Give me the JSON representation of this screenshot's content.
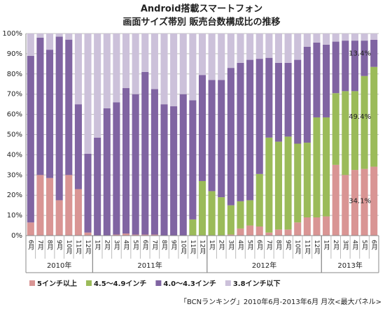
{
  "chart_data": {
    "type": "stacked_bar",
    "title": "Android搭載スマートフォン",
    "subtitle": "画面サイズ帯別 販売台数構成比の推移",
    "source": "「BCNランキング」2010年6月-2013年6月 月次<最大パネル>",
    "categories": [
      "6月",
      "7月",
      "8月",
      "9月",
      "10月",
      "11月",
      "12月",
      "1月",
      "2月",
      "3月",
      "4月",
      "5月",
      "6月",
      "7月",
      "8月",
      "9月",
      "10月",
      "11月",
      "12月",
      "1月",
      "2月",
      "3月",
      "4月",
      "5月",
      "6月",
      "7月",
      "8月",
      "9月",
      "10月",
      "11月",
      "12月",
      "1月",
      "2月",
      "3月",
      "4月",
      "5月",
      "6月"
    ],
    "year_groups": [
      {
        "label": "2010年",
        "months": 7
      },
      {
        "label": "2011年",
        "months": 12
      },
      {
        "label": "2012年",
        "months": 12
      },
      {
        "label": "2013年",
        "months": 6
      }
    ],
    "series": [
      {
        "name": "5インチ以上",
        "color": "#d99594",
        "values": [
          6.5,
          30,
          28.5,
          17.5,
          30,
          23,
          1.5,
          0,
          0,
          0.5,
          1,
          0.5,
          0.5,
          0.5,
          0,
          0,
          0,
          0,
          0,
          0,
          0,
          0.5,
          3.5,
          5,
          4.5,
          1.5,
          3,
          3,
          6.5,
          9,
          9,
          9.5,
          35,
          30,
          32.5,
          33,
          34.1
        ],
        "value_labels": [
          null,
          null,
          null,
          null,
          null,
          null,
          null,
          null,
          null,
          null,
          null,
          null,
          null,
          null,
          null,
          null,
          null,
          null,
          null,
          null,
          null,
          null,
          null,
          null,
          null,
          null,
          null,
          null,
          null,
          null,
          null,
          null,
          null,
          null,
          null,
          null,
          "34.1%"
        ]
      },
      {
        "name": "4.5～4.9インチ",
        "color": "#9bbb59",
        "values": [
          0,
          0,
          0,
          0,
          0,
          0,
          0,
          0,
          0,
          0,
          0,
          0,
          0,
          0,
          0,
          0,
          0,
          8,
          27,
          22,
          19,
          14.5,
          13.5,
          12.5,
          26,
          47,
          43.5,
          46,
          39,
          37,
          49.5,
          49,
          35.5,
          41.5,
          39,
          46,
          49.4
        ],
        "value_labels": [
          null,
          null,
          null,
          null,
          null,
          null,
          null,
          null,
          null,
          null,
          null,
          null,
          null,
          null,
          null,
          null,
          null,
          null,
          null,
          null,
          null,
          null,
          null,
          null,
          null,
          null,
          null,
          null,
          null,
          null,
          null,
          null,
          null,
          null,
          null,
          null,
          "49.4%"
        ]
      },
      {
        "name": "4.0～4.3インチ",
        "color": "#8064a2",
        "values": [
          82.5,
          68,
          63.5,
          81,
          67,
          42,
          39,
          48.5,
          63,
          65.5,
          72,
          69.5,
          80.5,
          72,
          65,
          64,
          70,
          59,
          52.5,
          55,
          58,
          68,
          68.5,
          69.5,
          57,
          39.5,
          39,
          36.5,
          41.5,
          47.5,
          37,
          36,
          25.5,
          25,
          25,
          17.5,
          13.4
        ],
        "value_labels": [
          null,
          null,
          null,
          null,
          null,
          null,
          null,
          null,
          null,
          null,
          null,
          null,
          null,
          null,
          null,
          null,
          null,
          null,
          null,
          null,
          null,
          null,
          null,
          null,
          null,
          null,
          null,
          null,
          null,
          null,
          null,
          null,
          null,
          null,
          null,
          null,
          "13.4%"
        ]
      },
      {
        "name": "3.8インチ以下",
        "color": "#ccc1da",
        "values": [
          11,
          2,
          8,
          1.5,
          3,
          35,
          59.5,
          51.5,
          37,
          34,
          27,
          30,
          19,
          27.5,
          35,
          36,
          30,
          33,
          20.5,
          23,
          23,
          17,
          14.5,
          13,
          12.5,
          12,
          14.5,
          14.5,
          13,
          6.5,
          4.5,
          5.5,
          4,
          3.5,
          3.5,
          3.5,
          3.1
        ]
      }
    ],
    "ylim": [
      0,
      100
    ],
    "yticks": [
      {
        "value": 0,
        "label": "0%"
      },
      {
        "value": 10,
        "label": "10%"
      },
      {
        "value": 20,
        "label": "20%"
      },
      {
        "value": 30,
        "label": "30%"
      },
      {
        "value": 40,
        "label": "40%"
      },
      {
        "value": 50,
        "label": "50%"
      },
      {
        "value": 60,
        "label": "60%"
      },
      {
        "value": 70,
        "label": "70%"
      },
      {
        "value": 80,
        "label": "80%"
      },
      {
        "value": 90,
        "label": "90%"
      },
      {
        "value": 100,
        "label": "100%"
      }
    ],
    "grid": true
  }
}
